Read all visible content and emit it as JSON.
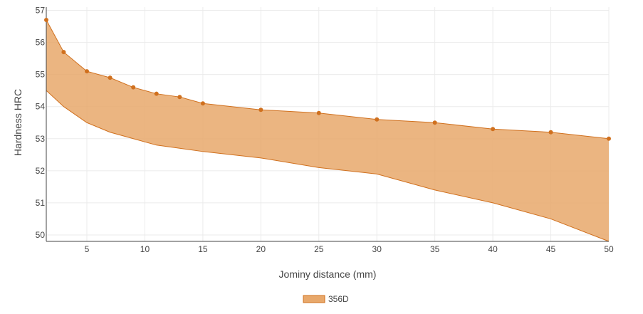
{
  "chart_data": {
    "type": "area",
    "xlabel": "Jominy distance (mm)",
    "ylabel": "Hardness HRC",
    "xlim": [
      1.5,
      50
    ],
    "ylim": [
      49.8,
      57.1
    ],
    "x_ticks": [
      5,
      10,
      15,
      20,
      25,
      30,
      35,
      40,
      45,
      50
    ],
    "y_ticks": [
      50,
      51,
      52,
      53,
      54,
      55,
      56,
      57
    ],
    "grid": true,
    "legend_position": "bottom-center",
    "series": [
      {
        "name": "356D",
        "color": "#e8a86b",
        "line_color": "#d0701e",
        "upper": {
          "x": [
            1.5,
            3,
            5,
            7,
            9,
            11,
            13,
            15,
            20,
            25,
            30,
            35,
            40,
            45,
            50
          ],
          "y": [
            56.7,
            55.7,
            55.1,
            54.9,
            54.6,
            54.4,
            54.3,
            54.1,
            53.9,
            53.8,
            53.6,
            53.5,
            53.3,
            53.2,
            53.0
          ]
        },
        "lower": {
          "x": [
            1.5,
            3,
            5,
            7,
            9,
            11,
            13,
            15,
            20,
            25,
            30,
            35,
            40,
            45,
            50
          ],
          "y": [
            54.5,
            54.0,
            53.5,
            53.2,
            53.0,
            52.8,
            52.7,
            52.6,
            52.4,
            52.1,
            51.9,
            51.4,
            51.0,
            50.5,
            49.8
          ]
        }
      }
    ]
  }
}
